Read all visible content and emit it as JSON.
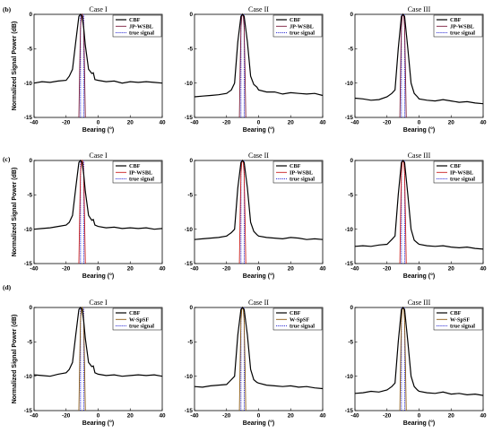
{
  "rows": [
    {
      "label": "(b)"
    },
    {
      "label": "(c)"
    },
    {
      "label": "(d)"
    }
  ],
  "chart_data": [
    {
      "type": "line",
      "panel": "(b)",
      "case": "I",
      "title": "Case I",
      "xlabel": "Bearing (°)",
      "ylabel": "Normalized Signal Power (dB)",
      "xlim": [
        -40,
        40
      ],
      "ylim": [
        -15,
        0
      ],
      "xticks": [
        "-40",
        "-20",
        "0",
        "20",
        "40"
      ],
      "yticks": [
        "0",
        "-5",
        "-10",
        "-15"
      ],
      "legend": [
        "CBF",
        "JP-WSBL",
        "true signal"
      ],
      "colors": {
        "cbf": "#000000",
        "method": "#7a1a3a",
        "true": "#1a1ad0"
      },
      "series": [
        {
          "name": "CBF",
          "x": [
            -40,
            -35,
            -30,
            -25,
            -20,
            -18,
            -16,
            -14,
            -12,
            -11,
            -10,
            -9,
            -8,
            -6,
            -4,
            -3,
            -2,
            0,
            5,
            10,
            15,
            20,
            25,
            30,
            35,
            40
          ],
          "y": [
            -10,
            -9.8,
            -9.9,
            -9.7,
            -9.6,
            -9,
            -8,
            -4,
            -0.3,
            0,
            -0.3,
            -2,
            -4.5,
            -8,
            -8.6,
            -8.5,
            -9.5,
            -9.6,
            -9.8,
            -9.7,
            -10,
            -9.8,
            -9.9,
            -9.8,
            -9.9,
            -10
          ]
        },
        {
          "name": "JP-WSBL",
          "x": [
            -12,
            -11.5,
            -11,
            -10.5,
            -10,
            -9.5,
            -9,
            -8.5,
            -8
          ],
          "y": [
            -15,
            -8,
            -2,
            -0.3,
            0,
            -0.3,
            -2,
            -8,
            -15
          ]
        }
      ],
      "true_signal_x": [
        -11,
        -9
      ]
    },
    {
      "type": "line",
      "panel": "(b)",
      "case": "II",
      "title": "Case II",
      "xlabel": "Bearing (°)",
      "ylabel": "",
      "xlim": [
        -40,
        40
      ],
      "ylim": [
        -15,
        0
      ],
      "xticks": [
        "-40",
        "-20",
        "0",
        "20",
        "40"
      ],
      "yticks": [
        "0",
        "-5",
        "-10",
        "-15"
      ],
      "legend": [
        "CBF",
        "JP-WSBL",
        "true signal"
      ],
      "colors": {
        "cbf": "#000000",
        "method": "#7a1a3a",
        "true": "#1a1ad0"
      },
      "series": [
        {
          "name": "CBF",
          "x": [
            -40,
            -35,
            -30,
            -25,
            -20,
            -17,
            -15,
            -13,
            -11,
            -10,
            -9,
            -7,
            -5,
            -3,
            -1,
            0,
            5,
            10,
            15,
            20,
            25,
            30,
            35,
            40
          ],
          "y": [
            -12,
            -11.9,
            -11.8,
            -11.7,
            -11.5,
            -11,
            -10,
            -4,
            -0.3,
            0,
            -0.3,
            -4,
            -9,
            -10.2,
            -10.6,
            -11,
            -11.3,
            -11.3,
            -11.6,
            -11.4,
            -11.5,
            -11.6,
            -11.5,
            -11.8
          ]
        },
        {
          "name": "JP-WSBL",
          "x": [
            -12,
            -11.5,
            -11,
            -10.5,
            -10,
            -9.5,
            -9,
            -8.5,
            -8
          ],
          "y": [
            -15,
            -8,
            -2,
            -0.3,
            0,
            -0.3,
            -2,
            -8,
            -15
          ]
        }
      ],
      "true_signal_x": [
        -11,
        -9
      ]
    },
    {
      "type": "line",
      "panel": "(b)",
      "case": "III",
      "title": "Case III",
      "xlabel": "Bearing (°)",
      "ylabel": "",
      "xlim": [
        -40,
        40
      ],
      "ylim": [
        -15,
        0
      ],
      "xticks": [
        "-40",
        "-20",
        "0",
        "20",
        "40"
      ],
      "yticks": [
        "0",
        "-5",
        "-10",
        "-15"
      ],
      "legend": [
        "CBF",
        "JP-WSBL",
        "true signal"
      ],
      "colors": {
        "cbf": "#000000",
        "method": "#7a1a3a",
        "true": "#1a1ad0"
      },
      "series": [
        {
          "name": "CBF",
          "x": [
            -40,
            -35,
            -30,
            -25,
            -20,
            -17,
            -15,
            -13,
            -11,
            -10,
            -9,
            -7,
            -5,
            -3,
            -1,
            0,
            5,
            10,
            15,
            20,
            25,
            30,
            35,
            40
          ],
          "y": [
            -12.2,
            -12.3,
            -12.5,
            -12.4,
            -12,
            -11.5,
            -11,
            -5,
            -0.3,
            0,
            -0.3,
            -5,
            -10,
            -11.5,
            -12,
            -12.3,
            -12.5,
            -12.6,
            -12.4,
            -12.6,
            -12.8,
            -12.7,
            -12.9,
            -13
          ]
        },
        {
          "name": "JP-WSBL",
          "x": [
            -12,
            -11.5,
            -11,
            -10.5,
            -10,
            -9.5,
            -9,
            -8.5,
            -8
          ],
          "y": [
            -15,
            -8,
            -2,
            -0.3,
            0,
            -0.3,
            -2,
            -8,
            -15
          ]
        }
      ],
      "true_signal_x": [
        -11,
        -9
      ]
    },
    {
      "type": "line",
      "panel": "(c)",
      "case": "I",
      "title": "Case I",
      "xlabel": "Bearing (°)",
      "ylabel": "Normalized Signal Power (dB)",
      "xlim": [
        -40,
        40
      ],
      "ylim": [
        -15,
        0
      ],
      "xticks": [
        "-40",
        "-20",
        "0",
        "20",
        "40"
      ],
      "yticks": [
        "0",
        "-5",
        "-10",
        "-15"
      ],
      "legend": [
        "CBF",
        "IP-WSBL",
        "true signal"
      ],
      "colors": {
        "cbf": "#000000",
        "method": "#c81e1e",
        "true": "#1a1ad0"
      },
      "series": [
        {
          "name": "CBF",
          "x": [
            -40,
            -35,
            -30,
            -25,
            -20,
            -18,
            -16,
            -14,
            -12,
            -11,
            -10,
            -9,
            -8,
            -6,
            -4,
            -3,
            -2,
            0,
            5,
            10,
            15,
            20,
            25,
            30,
            35,
            40
          ],
          "y": [
            -10,
            -9.9,
            -9.8,
            -9.6,
            -9.4,
            -9,
            -8,
            -4,
            -0.3,
            0,
            -0.3,
            -2,
            -4.5,
            -8,
            -8.7,
            -8.6,
            -9.4,
            -9.6,
            -9.8,
            -9.7,
            -9.9,
            -9.8,
            -9.9,
            -9.8,
            -10,
            -9.9
          ]
        },
        {
          "name": "IP-WSBL",
          "x": [
            -12,
            -11.5,
            -11,
            -10.5,
            -10,
            -9.5,
            -9,
            -8.5,
            -8
          ],
          "y": [
            -15,
            -8,
            -2,
            -0.3,
            0,
            -0.3,
            -2,
            -8,
            -15
          ]
        }
      ],
      "true_signal_x": [
        -11,
        -9
      ]
    },
    {
      "type": "line",
      "panel": "(c)",
      "case": "II",
      "title": "Case II",
      "xlabel": "Bearing (°)",
      "ylabel": "",
      "xlim": [
        -40,
        40
      ],
      "ylim": [
        -15,
        0
      ],
      "xticks": [
        "-40",
        "-20",
        "0",
        "20",
        "40"
      ],
      "yticks": [
        "0",
        "-5",
        "-10",
        "-15"
      ],
      "legend": [
        "CBF",
        "IP-WSBL",
        "true signal"
      ],
      "colors": {
        "cbf": "#000000",
        "method": "#c81e1e",
        "true": "#1a1ad0"
      },
      "series": [
        {
          "name": "CBF",
          "x": [
            -40,
            -35,
            -30,
            -25,
            -20,
            -17,
            -15,
            -13,
            -11,
            -10,
            -9,
            -7,
            -5,
            -3,
            -1,
            0,
            5,
            10,
            15,
            20,
            25,
            30,
            35,
            40
          ],
          "y": [
            -11.5,
            -11.4,
            -11.3,
            -11.2,
            -11,
            -10.5,
            -10,
            -4,
            -0.3,
            0,
            -0.3,
            -4,
            -9,
            -10.3,
            -10.8,
            -11,
            -11.2,
            -11.3,
            -11.4,
            -11.2,
            -11.3,
            -11.5,
            -11.4,
            -11.5
          ]
        },
        {
          "name": "IP-WSBL",
          "x": [
            -12,
            -11.5,
            -11,
            -10.5,
            -10,
            -9.5,
            -9,
            -8.5,
            -8
          ],
          "y": [
            -15,
            -8,
            -2,
            -0.3,
            0,
            -0.3,
            -2,
            -8,
            -15
          ]
        }
      ],
      "true_signal_x": [
        -11,
        -9
      ]
    },
    {
      "type": "line",
      "panel": "(c)",
      "case": "III",
      "title": "Case III",
      "xlabel": "Bearing (°)",
      "ylabel": "",
      "xlim": [
        -40,
        40
      ],
      "ylim": [
        -15,
        0
      ],
      "xticks": [
        "-40",
        "-20",
        "0",
        "20",
        "40"
      ],
      "yticks": [
        "0",
        "-5",
        "-10",
        "-15"
      ],
      "legend": [
        "CBF",
        "IP-WSBL",
        "true signal"
      ],
      "colors": {
        "cbf": "#000000",
        "method": "#c81e1e",
        "true": "#1a1ad0"
      },
      "series": [
        {
          "name": "CBF",
          "x": [
            -40,
            -35,
            -30,
            -25,
            -20,
            -17,
            -15,
            -13,
            -11,
            -10,
            -9,
            -7,
            -5,
            -3,
            -1,
            0,
            5,
            10,
            15,
            20,
            25,
            30,
            35,
            40
          ],
          "y": [
            -12.5,
            -12.4,
            -12.5,
            -12.3,
            -12.2,
            -11.5,
            -11,
            -5,
            -0.3,
            0,
            -0.3,
            -5,
            -10,
            -11.6,
            -12,
            -12.2,
            -12.4,
            -12.5,
            -12.4,
            -12.6,
            -12.7,
            -12.6,
            -12.8,
            -12.9
          ]
        },
        {
          "name": "IP-WSBL",
          "x": [
            -12,
            -11.5,
            -11,
            -10.5,
            -10,
            -9.5,
            -9,
            -8.5,
            -8
          ],
          "y": [
            -15,
            -8,
            -2,
            -0.3,
            0,
            -0.3,
            -2,
            -8,
            -15
          ]
        }
      ],
      "true_signal_x": [
        -11,
        -9
      ]
    },
    {
      "type": "line",
      "panel": "(d)",
      "case": "I",
      "title": "Case I",
      "xlabel": "Bearing (°)",
      "ylabel": "Normalized Signal Power (dB)",
      "xlim": [
        -40,
        40
      ],
      "ylim": [
        -15,
        0
      ],
      "xticks": [
        "-40",
        "-20",
        "0",
        "20",
        "40"
      ],
      "yticks": [
        "0",
        "-5",
        "-10",
        "-15"
      ],
      "legend": [
        "CBF",
        "W-SpSF",
        "true signal"
      ],
      "colors": {
        "cbf": "#000000",
        "method": "#8a5a14",
        "true": "#1a1ad0"
      },
      "series": [
        {
          "name": "CBF",
          "x": [
            -40,
            -35,
            -30,
            -25,
            -20,
            -18,
            -16,
            -14,
            -12,
            -11,
            -10,
            -9,
            -8,
            -6,
            -4,
            -3,
            -2,
            0,
            5,
            10,
            15,
            20,
            25,
            30,
            35,
            40
          ],
          "y": [
            -9.8,
            -9.9,
            -10,
            -9.7,
            -9.5,
            -9,
            -8,
            -4,
            -0.3,
            0,
            -0.3,
            -2,
            -4.5,
            -8,
            -8.6,
            -8.5,
            -9.5,
            -9.7,
            -9.9,
            -9.8,
            -10,
            -9.9,
            -9.8,
            -9.9,
            -9.8,
            -10
          ]
        },
        {
          "name": "W-SpSF",
          "x": [
            -12,
            -11.5,
            -11,
            -10.5,
            -10,
            -9.5,
            -9,
            -8.5,
            -8
          ],
          "y": [
            -15,
            -8,
            -2,
            -0.3,
            0,
            -0.3,
            -2,
            -8,
            -15
          ]
        }
      ],
      "true_signal_x": [
        -11,
        -9
      ]
    },
    {
      "type": "line",
      "panel": "(d)",
      "case": "II",
      "title": "Case II",
      "xlabel": "Bearing (°)",
      "ylabel": "",
      "xlim": [
        -40,
        40
      ],
      "ylim": [
        -15,
        0
      ],
      "xticks": [
        "-40",
        "-20",
        "0",
        "20",
        "40"
      ],
      "yticks": [
        "0",
        "-5",
        "-10",
        "-15"
      ],
      "legend": [
        "CBF",
        "W-SpSF",
        "true signal"
      ],
      "colors": {
        "cbf": "#000000",
        "method": "#8a5a14",
        "true": "#1a1ad0"
      },
      "series": [
        {
          "name": "CBF",
          "x": [
            -40,
            -35,
            -30,
            -25,
            -20,
            -17,
            -15,
            -13,
            -11,
            -10,
            -9,
            -7,
            -5,
            -3,
            -1,
            0,
            5,
            10,
            15,
            20,
            25,
            30,
            35,
            40
          ],
          "y": [
            -11.5,
            -11.6,
            -11.4,
            -11.3,
            -11.2,
            -10.5,
            -10,
            -4,
            -0.3,
            0,
            -0.3,
            -4,
            -9,
            -10.5,
            -10.9,
            -11,
            -11.3,
            -11.4,
            -11.5,
            -11.4,
            -11.6,
            -11.5,
            -11.7,
            -11.8
          ]
        },
        {
          "name": "W-SpSF",
          "x": [
            -12,
            -11.5,
            -11,
            -10.5,
            -10,
            -9.5,
            -9,
            -8.5,
            -8
          ],
          "y": [
            -15,
            -8,
            -2,
            -0.3,
            0,
            -0.3,
            -2,
            -8,
            -15
          ]
        }
      ],
      "true_signal_x": [
        -11,
        -9
      ]
    },
    {
      "type": "line",
      "panel": "(d)",
      "case": "III",
      "title": "Case III",
      "xlabel": "Bearing (°)",
      "ylabel": "",
      "xlim": [
        -40,
        40
      ],
      "ylim": [
        -15,
        0
      ],
      "xticks": [
        "-40",
        "-20",
        "0",
        "20",
        "40"
      ],
      "yticks": [
        "0",
        "-5",
        "-10",
        "-15"
      ],
      "legend": [
        "CBF",
        "W-SpSF",
        "true signal"
      ],
      "colors": {
        "cbf": "#000000",
        "method": "#8a5a14",
        "true": "#1a1ad0"
      },
      "series": [
        {
          "name": "CBF",
          "x": [
            -40,
            -35,
            -30,
            -25,
            -20,
            -17,
            -15,
            -13,
            -11,
            -10,
            -9,
            -7,
            -5,
            -3,
            -1,
            0,
            5,
            10,
            15,
            20,
            25,
            30,
            35,
            40
          ],
          "y": [
            -12.5,
            -12.4,
            -12.2,
            -12.3,
            -12,
            -11.5,
            -11,
            -5,
            -0.3,
            0,
            -0.3,
            -5,
            -10,
            -11.5,
            -12,
            -12.2,
            -12.4,
            -12.5,
            -12.3,
            -12.6,
            -12.5,
            -12.7,
            -12.6,
            -12.8
          ]
        },
        {
          "name": "W-SpSF",
          "x": [
            -12,
            -11.5,
            -11,
            -10.5,
            -10,
            -9.5,
            -9,
            -8.5,
            -8
          ],
          "y": [
            -15,
            -8,
            -2,
            -0.3,
            0,
            -0.3,
            -2,
            -8,
            -15
          ]
        }
      ],
      "true_signal_x": [
        -11,
        -9
      ]
    }
  ]
}
